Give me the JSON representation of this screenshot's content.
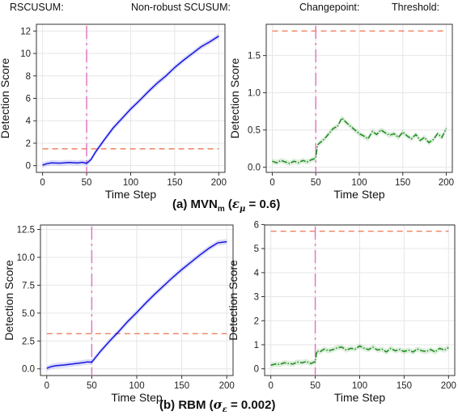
{
  "legend": {
    "items": [
      {
        "label": "RSCUSUM:",
        "color": "#1515e0",
        "style": "solid"
      },
      {
        "label": "Non-robust SCUSUM:",
        "color": "#1a8a1a",
        "style": "dashdot"
      },
      {
        "label": "Changepoint:",
        "color": "#e377c2",
        "style": "longdash"
      },
      {
        "label": "Threshold:",
        "color": "#ff9f1c",
        "style": "dashed"
      }
    ]
  },
  "captions": {
    "a": {
      "prefix": "(a) MVN",
      "sub": "m",
      "paren_open": " (",
      "sym": "ε",
      "sym_sub": "μ",
      "rest": " = 0.6)"
    },
    "b": {
      "prefix": "(b) RBM",
      "paren_open": " (",
      "sym": "σ",
      "sym_sub": "ε",
      "rest": " = 0.002)"
    }
  },
  "chart_data": [
    {
      "id": "a-left",
      "type": "line",
      "xlabel": "Time Step",
      "ylabel": "Detection Score",
      "xlim": [
        -7,
        207
      ],
      "ylim": [
        -0.6,
        12.6
      ],
      "xticks": [
        0,
        50,
        100,
        150,
        200
      ],
      "xticklabels": [
        "0",
        "50",
        "100",
        "150",
        "200"
      ],
      "yticks": [
        0,
        2,
        4,
        6,
        8,
        10,
        12
      ],
      "yticklabels": [
        "0",
        "2",
        "4",
        "6",
        "8",
        "10",
        "12"
      ],
      "grid": true,
      "changepoint": 50,
      "threshold": 1.5,
      "series": [
        {
          "name": "RSCUSUM",
          "color": "#1515e0",
          "style": "solid",
          "x": [
            0,
            5,
            10,
            20,
            30,
            40,
            45,
            50,
            55,
            60,
            70,
            80,
            90,
            100,
            110,
            120,
            130,
            140,
            150,
            160,
            170,
            180,
            190,
            200
          ],
          "y": [
            0.05,
            0.18,
            0.25,
            0.22,
            0.28,
            0.24,
            0.3,
            0.2,
            0.55,
            1.2,
            2.3,
            3.35,
            4.2,
            5.05,
            5.8,
            6.6,
            7.35,
            8.0,
            8.75,
            9.4,
            10.0,
            10.6,
            11.05,
            11.55
          ]
        }
      ]
    },
    {
      "id": "a-right",
      "type": "line",
      "xlabel": "Time Step",
      "ylabel": "Detection Score",
      "xlim": [
        -7,
        207
      ],
      "ylim": [
        -0.07,
        1.92
      ],
      "xticks": [
        0,
        50,
        100,
        150,
        200
      ],
      "xticklabels": [
        "0",
        "50",
        "100",
        "150",
        "200"
      ],
      "yticks": [
        0.0,
        0.5,
        1.0,
        1.5
      ],
      "yticklabels": [
        "0.0",
        "0.5",
        "1.0",
        "1.5"
      ],
      "grid": true,
      "changepoint": 50,
      "threshold": 1.83,
      "series": [
        {
          "name": "Non-robust SCUSUM",
          "color": "#1a8a1a",
          "style": "dashdot",
          "x": [
            0,
            5,
            10,
            15,
            20,
            25,
            30,
            35,
            40,
            45,
            50,
            52,
            55,
            60,
            65,
            70,
            75,
            80,
            85,
            90,
            95,
            100,
            105,
            110,
            115,
            120,
            125,
            130,
            135,
            140,
            145,
            150,
            155,
            160,
            165,
            170,
            175,
            180,
            185,
            190,
            195,
            200
          ],
          "y": [
            0.08,
            0.06,
            0.09,
            0.07,
            0.05,
            0.08,
            0.06,
            0.09,
            0.07,
            0.1,
            0.12,
            0.3,
            0.33,
            0.38,
            0.45,
            0.52,
            0.55,
            0.66,
            0.6,
            0.55,
            0.5,
            0.45,
            0.42,
            0.38,
            0.48,
            0.44,
            0.5,
            0.46,
            0.43,
            0.45,
            0.4,
            0.47,
            0.42,
            0.38,
            0.44,
            0.36,
            0.4,
            0.33,
            0.37,
            0.45,
            0.4,
            0.52
          ]
        }
      ]
    },
    {
      "id": "b-left",
      "type": "line",
      "xlabel": "Time Step",
      "ylabel": "Detection Score",
      "xlim": [
        -7,
        207
      ],
      "ylim": [
        -0.6,
        12.9
      ],
      "xticks": [
        0,
        50,
        100,
        150,
        200
      ],
      "xticklabels": [
        "0",
        "50",
        "100",
        "150",
        "200"
      ],
      "yticks": [
        0.0,
        2.5,
        5.0,
        7.5,
        10.0,
        12.5
      ],
      "yticklabels": [
        "0.0",
        "2.5",
        "5.0",
        "7.5",
        "10.0",
        "12.5"
      ],
      "grid": true,
      "changepoint": 50,
      "threshold": 3.15,
      "series": [
        {
          "name": "RSCUSUM",
          "color": "#1515e0",
          "style": "solid",
          "x": [
            0,
            5,
            10,
            20,
            30,
            40,
            45,
            50,
            55,
            60,
            70,
            80,
            90,
            100,
            110,
            120,
            130,
            140,
            150,
            160,
            170,
            180,
            190,
            200
          ],
          "y": [
            0.05,
            0.2,
            0.28,
            0.35,
            0.45,
            0.55,
            0.62,
            0.6,
            1.1,
            1.6,
            2.5,
            3.35,
            4.25,
            5.05,
            5.9,
            6.7,
            7.45,
            8.2,
            8.9,
            9.55,
            10.2,
            10.8,
            11.3,
            11.4
          ]
        }
      ]
    },
    {
      "id": "b-right",
      "type": "line",
      "xlabel": "Time Step",
      "ylabel": "Detection Score",
      "xlim": [
        -7,
        207
      ],
      "ylim": [
        -0.28,
        5.98
      ],
      "xticks": [
        0,
        50,
        100,
        150,
        200
      ],
      "xticklabels": [
        "0",
        "50",
        "100",
        "150",
        "200"
      ],
      "yticks": [
        0,
        1,
        2,
        3,
        4,
        5,
        6
      ],
      "yticklabels": [
        "0",
        "1",
        "2",
        "3",
        "4",
        "5",
        "6"
      ],
      "grid": true,
      "changepoint": 50,
      "threshold": 5.72,
      "series": [
        {
          "name": "Non-robust SCUSUM",
          "color": "#1a8a1a",
          "style": "dashdot",
          "x": [
            0,
            5,
            10,
            15,
            20,
            25,
            30,
            35,
            40,
            45,
            50,
            52,
            55,
            60,
            65,
            70,
            75,
            80,
            85,
            90,
            95,
            100,
            105,
            110,
            115,
            120,
            125,
            130,
            135,
            140,
            145,
            150,
            155,
            160,
            165,
            170,
            175,
            180,
            185,
            190,
            195,
            200
          ],
          "y": [
            0.15,
            0.2,
            0.18,
            0.25,
            0.22,
            0.2,
            0.28,
            0.25,
            0.3,
            0.22,
            0.3,
            0.75,
            0.7,
            0.82,
            0.75,
            0.8,
            0.88,
            0.9,
            0.78,
            0.85,
            0.82,
            0.95,
            0.85,
            0.8,
            0.9,
            0.78,
            0.82,
            0.7,
            0.85,
            0.75,
            0.8,
            0.72,
            0.78,
            0.7,
            0.82,
            0.75,
            0.72,
            0.8,
            0.7,
            0.85,
            0.78,
            0.88
          ]
        }
      ]
    }
  ]
}
